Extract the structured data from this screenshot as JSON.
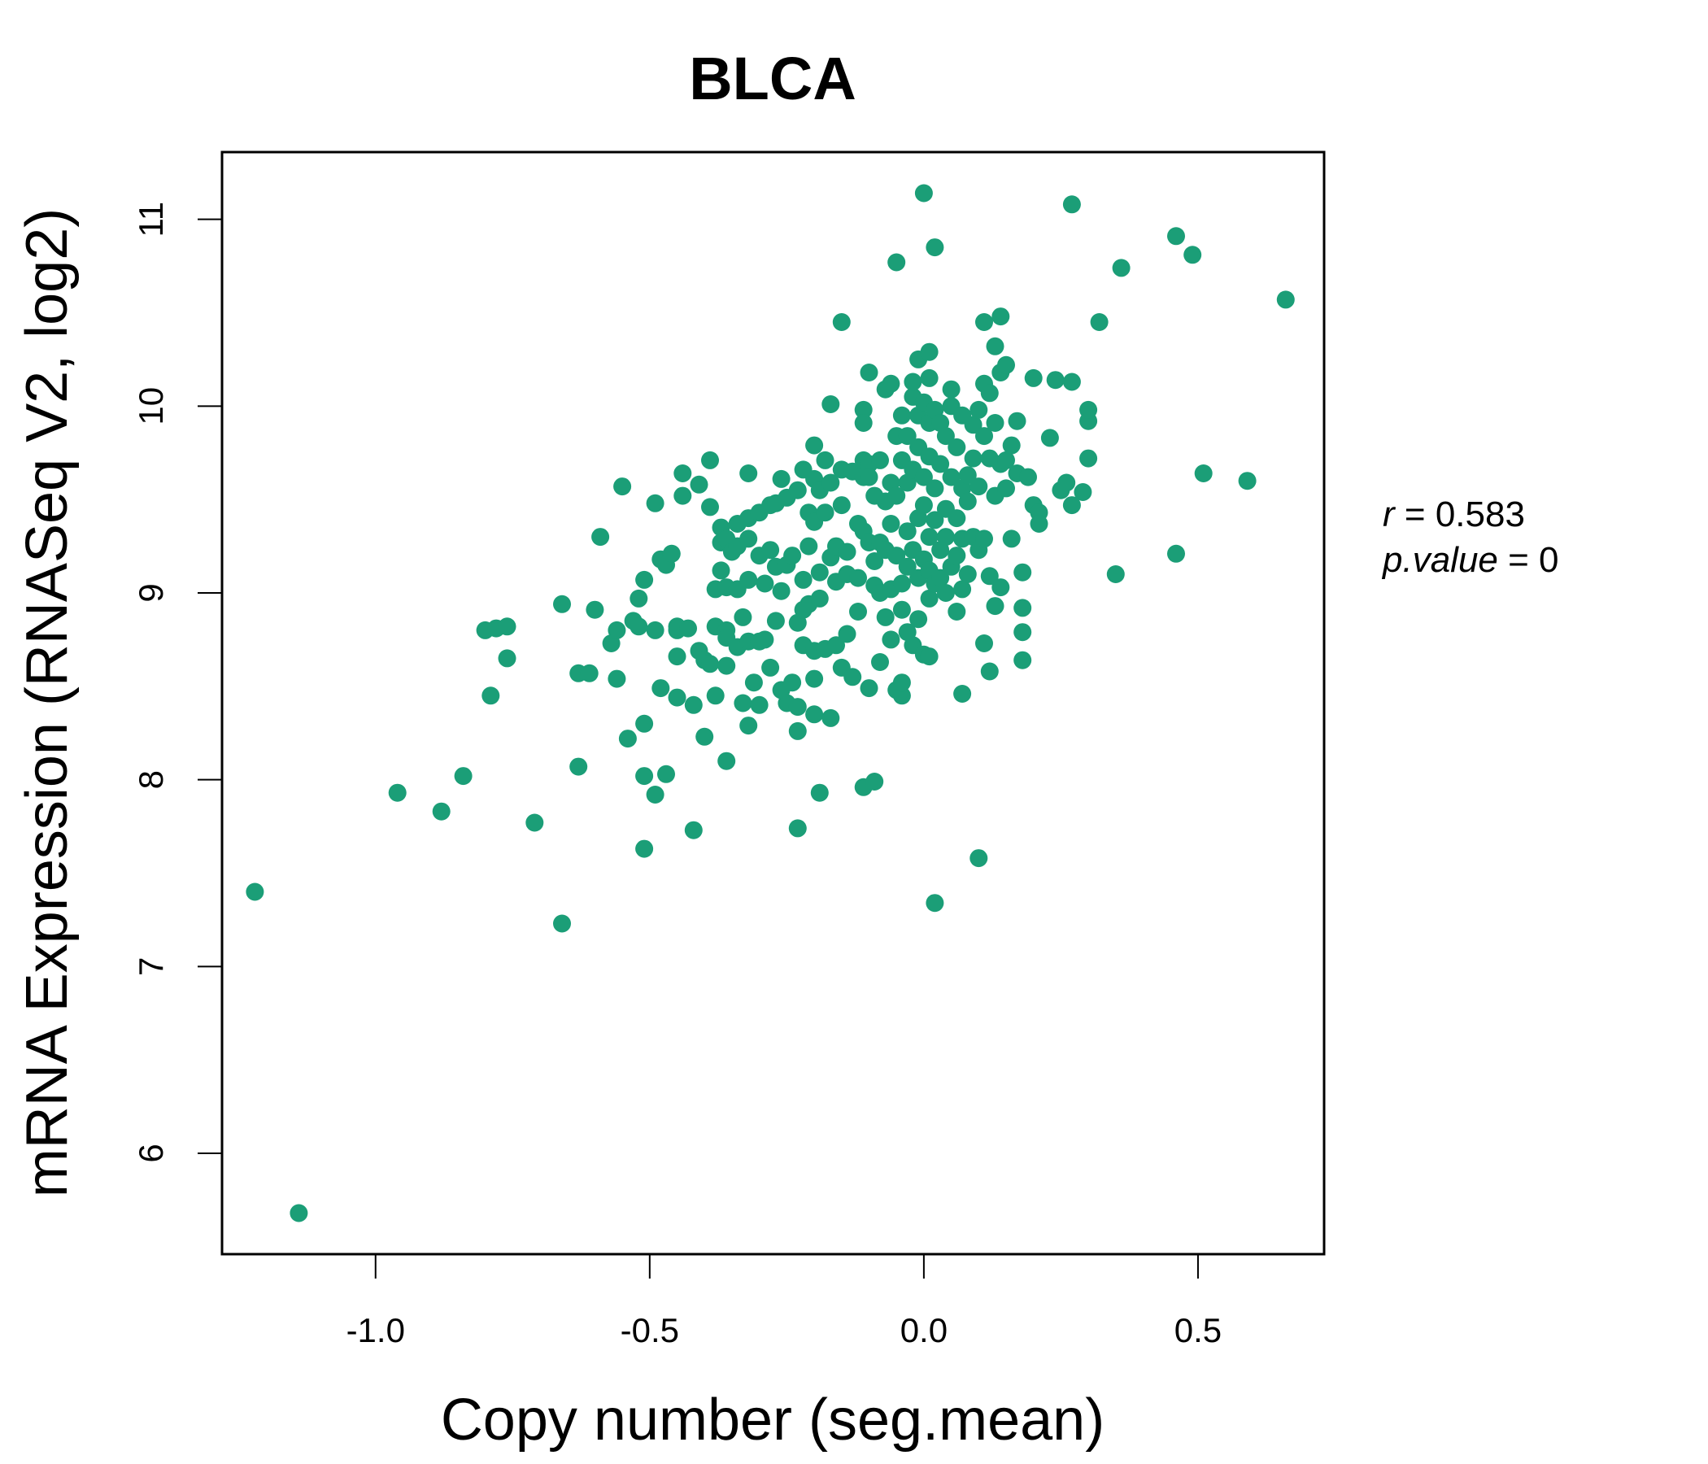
{
  "chart_data": {
    "type": "scatter",
    "title": "BLCA",
    "xlabel": "Copy number (seg.mean)",
    "ylabel": "mRNA Expression (RNASeq V2, log2)",
    "xlim": [
      -1.28,
      0.73
    ],
    "ylim": [
      5.46,
      11.36
    ],
    "xticks": [
      -1.0,
      -0.5,
      0.0,
      0.5
    ],
    "xtick_labels": [
      "-1.0",
      "-0.5",
      "0.0",
      "0.5"
    ],
    "yticks": [
      6,
      7,
      8,
      9,
      10,
      11
    ],
    "ytick_labels": [
      "6",
      "7",
      "8",
      "9",
      "10",
      "11"
    ],
    "grid": false,
    "legend": "none",
    "color": "#1b9e77",
    "stats": {
      "r_label": "r",
      "r_value": "0.583",
      "p_label": "p.value",
      "p_value": "0"
    },
    "series": [
      {
        "points": [
          [
            -1.22,
            7.4
          ],
          [
            -1.14,
            5.68
          ],
          [
            -0.96,
            7.93
          ],
          [
            -0.88,
            7.83
          ],
          [
            -0.84,
            8.02
          ],
          [
            -0.8,
            8.8
          ],
          [
            -0.79,
            8.45
          ],
          [
            -0.78,
            8.81
          ],
          [
            -0.76,
            8.82
          ],
          [
            -0.76,
            8.65
          ],
          [
            -0.71,
            7.77
          ],
          [
            -0.66,
            7.23
          ],
          [
            -0.66,
            8.94
          ],
          [
            -0.63,
            8.57
          ],
          [
            -0.63,
            8.07
          ],
          [
            -0.61,
            8.57
          ],
          [
            -0.6,
            8.91
          ],
          [
            -0.59,
            9.3
          ],
          [
            -0.57,
            8.73
          ],
          [
            -0.56,
            8.8
          ],
          [
            -0.56,
            8.54
          ],
          [
            -0.55,
            9.57
          ],
          [
            -0.54,
            8.22
          ],
          [
            -0.53,
            8.85
          ],
          [
            -0.52,
            8.97
          ],
          [
            -0.52,
            8.82
          ],
          [
            -0.51,
            9.07
          ],
          [
            -0.51,
            8.3
          ],
          [
            -0.51,
            8.02
          ],
          [
            -0.51,
            7.63
          ],
          [
            -0.49,
            7.92
          ],
          [
            -0.49,
            9.48
          ],
          [
            -0.49,
            8.8
          ],
          [
            -0.48,
            9.18
          ],
          [
            -0.48,
            8.49
          ],
          [
            -0.47,
            8.03
          ],
          [
            -0.47,
            9.15
          ],
          [
            -0.46,
            9.21
          ],
          [
            -0.45,
            8.8
          ],
          [
            -0.45,
            8.82
          ],
          [
            -0.45,
            8.66
          ],
          [
            -0.45,
            8.44
          ],
          [
            -0.44,
            9.64
          ],
          [
            -0.44,
            9.52
          ],
          [
            -0.43,
            8.81
          ],
          [
            -0.42,
            8.4
          ],
          [
            -0.42,
            7.73
          ],
          [
            -0.41,
            9.58
          ],
          [
            -0.41,
            8.69
          ],
          [
            -0.4,
            8.64
          ],
          [
            -0.4,
            8.23
          ],
          [
            -0.39,
            9.71
          ],
          [
            -0.39,
            9.46
          ],
          [
            -0.39,
            8.62
          ],
          [
            -0.38,
            9.02
          ],
          [
            -0.38,
            8.82
          ],
          [
            -0.38,
            8.45
          ],
          [
            -0.37,
            9.27
          ],
          [
            -0.37,
            9.35
          ],
          [
            -0.37,
            9.12
          ],
          [
            -0.36,
            9.29
          ],
          [
            -0.36,
            9.03
          ],
          [
            -0.36,
            8.8
          ],
          [
            -0.36,
            8.76
          ],
          [
            -0.36,
            8.61
          ],
          [
            -0.36,
            8.1
          ],
          [
            -0.35,
            9.22
          ],
          [
            -0.34,
            9.25
          ],
          [
            -0.34,
            9.37
          ],
          [
            -0.34,
            9.02
          ],
          [
            -0.34,
            8.71
          ],
          [
            -0.33,
            8.41
          ],
          [
            -0.33,
            8.87
          ],
          [
            -0.32,
            9.29
          ],
          [
            -0.32,
            8.74
          ],
          [
            -0.32,
            9.07
          ],
          [
            -0.32,
            8.29
          ],
          [
            -0.32,
            9.4
          ],
          [
            -0.32,
            9.64
          ],
          [
            -0.31,
            8.52
          ],
          [
            -0.3,
            8.4
          ],
          [
            -0.3,
            8.74
          ],
          [
            -0.3,
            9.43
          ],
          [
            -0.3,
            9.2
          ],
          [
            -0.29,
            8.75
          ],
          [
            -0.29,
            9.05
          ],
          [
            -0.28,
            8.6
          ],
          [
            -0.28,
            9.47
          ],
          [
            -0.28,
            9.23
          ],
          [
            -0.27,
            9.48
          ],
          [
            -0.27,
            8.85
          ],
          [
            -0.27,
            9.14
          ],
          [
            -0.26,
            9.61
          ],
          [
            -0.26,
            9.01
          ],
          [
            -0.26,
            8.48
          ],
          [
            -0.25,
            9.51
          ],
          [
            -0.25,
            9.15
          ],
          [
            -0.25,
            8.41
          ],
          [
            -0.24,
            9.2
          ],
          [
            -0.24,
            8.52
          ],
          [
            -0.23,
            8.84
          ],
          [
            -0.23,
            8.26
          ],
          [
            -0.23,
            8.39
          ],
          [
            -0.23,
            9.55
          ],
          [
            -0.23,
            7.74
          ],
          [
            -0.22,
            9.66
          ],
          [
            -0.22,
            9.07
          ],
          [
            -0.22,
            8.91
          ],
          [
            -0.22,
            8.72
          ],
          [
            -0.21,
            9.43
          ],
          [
            -0.21,
            9.25
          ],
          [
            -0.21,
            8.94
          ],
          [
            -0.2,
            9.61
          ],
          [
            -0.2,
            9.79
          ],
          [
            -0.2,
            9.38
          ],
          [
            -0.2,
            8.69
          ],
          [
            -0.2,
            8.54
          ],
          [
            -0.2,
            8.35
          ],
          [
            -0.19,
            7.93
          ],
          [
            -0.19,
            9.55
          ],
          [
            -0.19,
            9.11
          ],
          [
            -0.19,
            8.97
          ],
          [
            -0.18,
            9.71
          ],
          [
            -0.18,
            9.43
          ],
          [
            -0.18,
            8.7
          ],
          [
            -0.17,
            9.59
          ],
          [
            -0.17,
            9.19
          ],
          [
            -0.17,
            8.33
          ],
          [
            -0.17,
            10.01
          ],
          [
            -0.16,
            9.25
          ],
          [
            -0.16,
            9.06
          ],
          [
            -0.16,
            8.72
          ],
          [
            -0.15,
            9.66
          ],
          [
            -0.15,
            9.47
          ],
          [
            -0.15,
            10.45
          ],
          [
            -0.15,
            8.6
          ],
          [
            -0.14,
            9.22
          ],
          [
            -0.14,
            8.78
          ],
          [
            -0.14,
            9.1
          ],
          [
            -0.13,
            9.65
          ],
          [
            -0.13,
            8.55
          ],
          [
            -0.12,
            9.08
          ],
          [
            -0.12,
            9.37
          ],
          [
            -0.12,
            8.9
          ],
          [
            -0.11,
            9.71
          ],
          [
            -0.11,
            9.62
          ],
          [
            -0.11,
            9.33
          ],
          [
            -0.11,
            9.98
          ],
          [
            -0.11,
            9.91
          ],
          [
            -0.11,
            7.96
          ],
          [
            -0.1,
            9.69
          ],
          [
            -0.1,
            9.27
          ],
          [
            -0.1,
            8.49
          ],
          [
            -0.1,
            10.18
          ],
          [
            -0.1,
            9.62
          ],
          [
            -0.09,
            9.17
          ],
          [
            -0.09,
            9.52
          ],
          [
            -0.09,
            9.04
          ],
          [
            -0.09,
            7.99
          ],
          [
            -0.08,
            9.27
          ],
          [
            -0.08,
            9.0
          ],
          [
            -0.08,
            8.63
          ],
          [
            -0.08,
            9.71
          ],
          [
            -0.07,
            9.49
          ],
          [
            -0.07,
            9.23
          ],
          [
            -0.07,
            8.87
          ],
          [
            -0.07,
            10.09
          ],
          [
            -0.06,
            9.59
          ],
          [
            -0.06,
            9.37
          ],
          [
            -0.06,
            9.02
          ],
          [
            -0.06,
            8.75
          ],
          [
            -0.06,
            10.12
          ],
          [
            -0.05,
            9.84
          ],
          [
            -0.05,
            9.52
          ],
          [
            -0.05,
            9.2
          ],
          [
            -0.05,
            8.48
          ],
          [
            -0.05,
            10.77
          ],
          [
            -0.04,
            9.95
          ],
          [
            -0.04,
            9.71
          ],
          [
            -0.04,
            9.05
          ],
          [
            -0.04,
            8.91
          ],
          [
            -0.04,
            8.45
          ],
          [
            -0.04,
            8.52
          ],
          [
            -0.03,
            9.84
          ],
          [
            -0.03,
            9.59
          ],
          [
            -0.03,
            9.33
          ],
          [
            -0.03,
            9.14
          ],
          [
            -0.03,
            8.79
          ],
          [
            -0.02,
            10.05
          ],
          [
            -0.02,
            9.66
          ],
          [
            -0.02,
            9.23
          ],
          [
            -0.02,
            8.72
          ],
          [
            -0.02,
            10.13
          ],
          [
            -0.01,
            9.95
          ],
          [
            -0.01,
            9.78
          ],
          [
            -0.01,
            9.4
          ],
          [
            -0.01,
            9.08
          ],
          [
            -0.01,
            8.86
          ],
          [
            -0.01,
            10.25
          ],
          [
            0.0,
            10.02
          ],
          [
            0.0,
            9.62
          ],
          [
            0.0,
            9.47
          ],
          [
            0.0,
            9.18
          ],
          [
            0.0,
            8.67
          ],
          [
            0.0,
            11.14
          ],
          [
            0.01,
            9.91
          ],
          [
            0.01,
            9.73
          ],
          [
            0.01,
            9.3
          ],
          [
            0.01,
            9.12
          ],
          [
            0.01,
            8.97
          ],
          [
            0.01,
            10.29
          ],
          [
            0.01,
            8.66
          ],
          [
            0.01,
            10.15
          ],
          [
            0.02,
            9.98
          ],
          [
            0.02,
            9.56
          ],
          [
            0.02,
            9.39
          ],
          [
            0.02,
            9.05
          ],
          [
            0.02,
            10.85
          ],
          [
            0.02,
            7.34
          ],
          [
            0.03,
            9.91
          ],
          [
            0.03,
            9.69
          ],
          [
            0.03,
            9.23
          ],
          [
            0.03,
            9.08
          ],
          [
            0.04,
            9.84
          ],
          [
            0.04,
            9.45
          ],
          [
            0.04,
            9.3
          ],
          [
            0.04,
            9.0
          ],
          [
            0.05,
            10.09
          ],
          [
            0.05,
            9.62
          ],
          [
            0.05,
            9.14
          ],
          [
            0.05,
            10.0
          ],
          [
            0.06,
            9.78
          ],
          [
            0.06,
            9.4
          ],
          [
            0.06,
            9.2
          ],
          [
            0.06,
            8.9
          ],
          [
            0.07,
            9.95
          ],
          [
            0.07,
            9.56
          ],
          [
            0.07,
            9.29
          ],
          [
            0.07,
            9.02
          ],
          [
            0.07,
            8.46
          ],
          [
            0.08,
            9.63
          ],
          [
            0.08,
            9.49
          ],
          [
            0.08,
            9.1
          ],
          [
            0.09,
            9.72
          ],
          [
            0.09,
            9.9
          ],
          [
            0.09,
            9.3
          ],
          [
            0.1,
            9.98
          ],
          [
            0.1,
            9.57
          ],
          [
            0.1,
            9.23
          ],
          [
            0.1,
            7.58
          ],
          [
            0.11,
            10.45
          ],
          [
            0.11,
            9.84
          ],
          [
            0.11,
            9.29
          ],
          [
            0.11,
            8.73
          ],
          [
            0.11,
            10.12
          ],
          [
            0.12,
            9.72
          ],
          [
            0.12,
            9.09
          ],
          [
            0.12,
            8.58
          ],
          [
            0.12,
            10.07
          ],
          [
            0.13,
            10.32
          ],
          [
            0.13,
            9.91
          ],
          [
            0.13,
            9.52
          ],
          [
            0.13,
            8.93
          ],
          [
            0.14,
            10.48
          ],
          [
            0.14,
            10.18
          ],
          [
            0.14,
            9.69
          ],
          [
            0.14,
            9.03
          ],
          [
            0.15,
            10.22
          ],
          [
            0.15,
            9.71
          ],
          [
            0.15,
            9.56
          ],
          [
            0.16,
            9.79
          ],
          [
            0.16,
            9.29
          ],
          [
            0.17,
            9.92
          ],
          [
            0.17,
            9.64
          ],
          [
            0.18,
            9.11
          ],
          [
            0.18,
            8.92
          ],
          [
            0.18,
            8.79
          ],
          [
            0.18,
            8.64
          ],
          [
            0.19,
            9.62
          ],
          [
            0.2,
            10.15
          ],
          [
            0.2,
            9.47
          ],
          [
            0.21,
            9.43
          ],
          [
            0.21,
            9.37
          ],
          [
            0.23,
            9.83
          ],
          [
            0.24,
            10.14
          ],
          [
            0.25,
            9.55
          ],
          [
            0.26,
            9.59
          ],
          [
            0.27,
            9.47
          ],
          [
            0.27,
            10.13
          ],
          [
            0.27,
            11.08
          ],
          [
            0.29,
            9.54
          ],
          [
            0.3,
            9.92
          ],
          [
            0.3,
            9.98
          ],
          [
            0.3,
            9.72
          ],
          [
            0.32,
            10.45
          ],
          [
            0.35,
            9.1
          ],
          [
            0.36,
            10.74
          ],
          [
            0.46,
            10.91
          ],
          [
            0.46,
            9.21
          ],
          [
            0.49,
            10.81
          ],
          [
            0.51,
            9.64
          ],
          [
            0.59,
            9.6
          ],
          [
            0.66,
            10.57
          ]
        ]
      }
    ]
  }
}
